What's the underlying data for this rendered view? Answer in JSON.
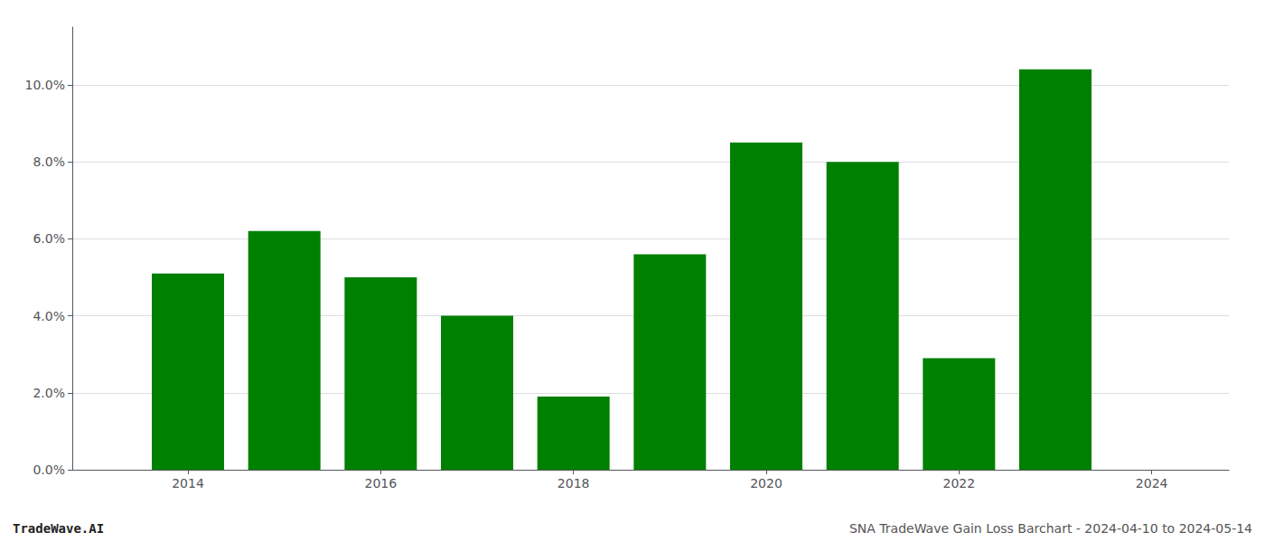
{
  "chart_data": {
    "type": "bar",
    "x": [
      2014,
      2015,
      2016,
      2017,
      2018,
      2019,
      2020,
      2021,
      2022,
      2023
    ],
    "values": [
      0.051,
      0.062,
      0.05,
      0.04,
      0.019,
      0.056,
      0.085,
      0.08,
      0.029,
      0.104
    ],
    "color": "#008000",
    "xlim": [
      2012.8,
      2024.8
    ],
    "xticks": [
      2014,
      2016,
      2018,
      2020,
      2022,
      2024
    ],
    "ylim": [
      0,
      0.115
    ],
    "yticks": [
      {
        "value": 0.0,
        "label": "0.0%"
      },
      {
        "value": 0.02,
        "label": "2.0%"
      },
      {
        "value": 0.04,
        "label": "4.0%"
      },
      {
        "value": 0.06,
        "label": "6.0%"
      },
      {
        "value": 0.08,
        "label": "8.0%"
      },
      {
        "value": 0.1,
        "label": "10.0%"
      }
    ],
    "grid": true,
    "annotations": [
      "TradeWave.AI",
      "SNA TradeWave Gain Loss Barchart - 2024-04-10 to 2024-05-14"
    ]
  }
}
